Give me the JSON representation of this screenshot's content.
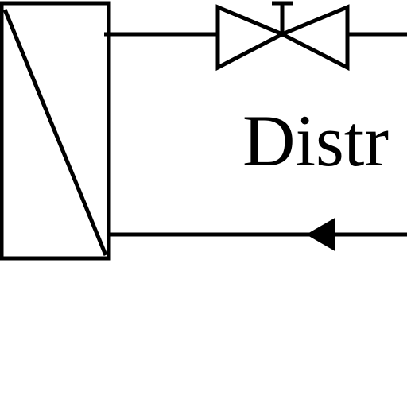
{
  "diagram": {
    "label": "Distr",
    "colors": {
      "line": "#000000",
      "background": "#ffffff"
    },
    "symbols": [
      "heat-exchanger",
      "valve",
      "flow-arrow"
    ]
  }
}
